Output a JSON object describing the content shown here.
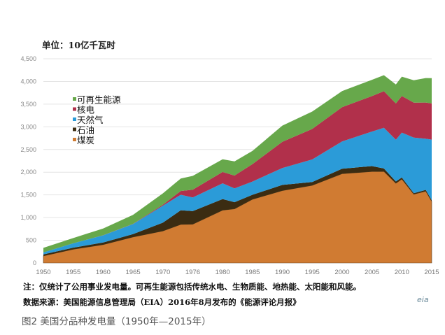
{
  "chart_data": {
    "type": "area",
    "stacked": true,
    "unit_label": "单位：10亿千瓦时",
    "ylim": [
      0,
      4500
    ],
    "yticks": [
      "0",
      "500",
      "1,000",
      "1,500",
      "2,000",
      "2,500",
      "3,000",
      "3,500",
      "4,000",
      "4,500"
    ],
    "xticks": [
      "1950",
      "1955",
      "1960",
      "1965",
      "1970",
      "1976",
      "1980",
      "1985",
      "1990",
      "1995",
      "2000",
      "2005",
      "2010",
      "2015"
    ],
    "xlim": [
      1950,
      2015
    ],
    "grid": true,
    "legend_position": "top-left",
    "x": [
      1950,
      1955,
      1960,
      1965,
      1970,
      1973,
      1975,
      1980,
      1982,
      1985,
      1990,
      1995,
      2000,
      2005,
      2007,
      2009,
      2010,
      2012,
      2014,
      2015
    ],
    "series": [
      {
        "name": "煤炭",
        "color": "#d07b32",
        "values": [
          155,
          301,
          403,
          571,
          704,
          848,
          853,
          1162,
          1192,
          1402,
          1594,
          1709,
          1966,
          2013,
          2016,
          1756,
          1847,
          1514,
          1581,
          1356
        ]
      },
      {
        "name": "石油",
        "color": "#3b2c12",
        "values": [
          34,
          37,
          48,
          65,
          184,
          314,
          289,
          246,
          147,
          100,
          126,
          75,
          111,
          122,
          66,
          39,
          37,
          23,
          30,
          28
        ]
      },
      {
        "name": "天然气",
        "color": "#2b9bd8",
        "values": [
          45,
          95,
          158,
          222,
          373,
          341,
          300,
          346,
          305,
          292,
          373,
          496,
          601,
          761,
          897,
          921,
          988,
          1226,
          1127,
          1335
        ]
      },
      {
        "name": "核电",
        "color": "#b1304b",
        "values": [
          0,
          0,
          1,
          4,
          22,
          83,
          173,
          251,
          283,
          384,
          577,
          673,
          754,
          782,
          806,
          799,
          807,
          769,
          797,
          797
        ]
      },
      {
        "name": "可再生能源",
        "color": "#67a84b",
        "values": [
          100,
          116,
          149,
          197,
          251,
          275,
          303,
          279,
          312,
          292,
          357,
          384,
          356,
          358,
          352,
          418,
          427,
          494,
          540,
          556
        ]
      }
    ]
  },
  "notes": {
    "line1": "注：仅统计了公用事业发电量。可再生能源包括传统水电、生物质能、地热能、太阳能和风能。",
    "line2": "数据来源：美国能源信息管理局（EIA）2016年8月发布的《能源评论月报》"
  },
  "logo": "eia",
  "caption": "图2 美国分品种发电量（1950年—2015年）"
}
